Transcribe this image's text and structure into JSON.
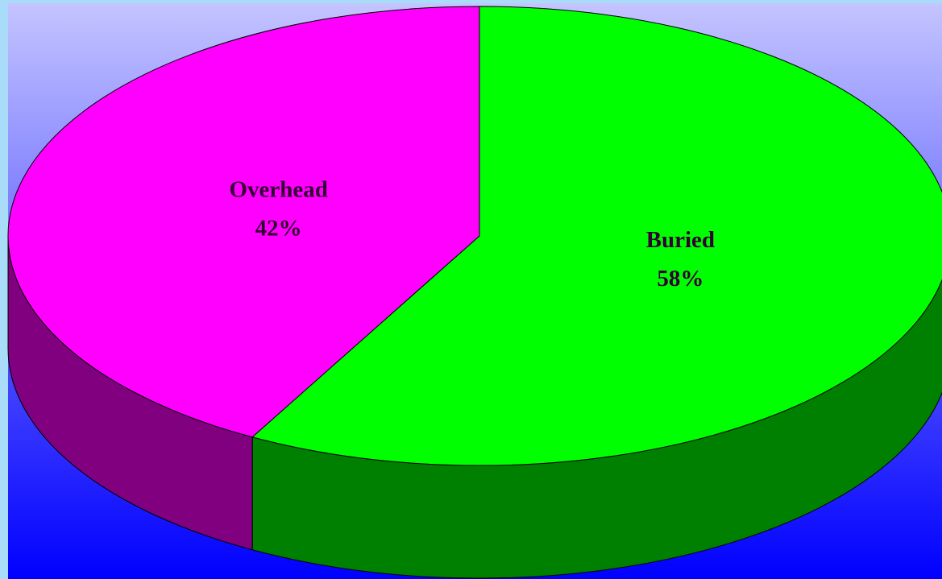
{
  "chart_data": {
    "type": "pie",
    "categories": [
      "Overhead",
      "Buried"
    ],
    "values": [
      42,
      58
    ],
    "value_labels": [
      "42%",
      "58%"
    ],
    "colors": [
      "#ff00ff",
      "#00ff00"
    ]
  }
}
